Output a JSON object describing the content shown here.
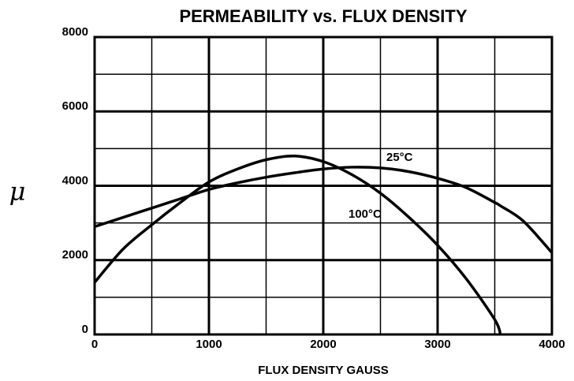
{
  "chart_data": {
    "type": "line",
    "title": "PERMEABILITY vs. FLUX DENSITY",
    "x_label": "FLUX  DENSITY  GAUSS",
    "y_label": "μ",
    "x": [
      0,
      250,
      500,
      750,
      1000,
      1250,
      1500,
      1750,
      2000,
      2250,
      2500,
      2750,
      3000,
      3250,
      3500,
      3550,
      3750,
      4000
    ],
    "series": [
      {
        "name": "25°C",
        "color": "#000000",
        "values": [
          2900,
          3150,
          3400,
          3650,
          3900,
          4080,
          4230,
          4350,
          4450,
          4500,
          4480,
          4380,
          4200,
          3950,
          3550,
          3460,
          3050,
          2200
        ]
      },
      {
        "name": "100°C",
        "color": "#000000",
        "values": [
          1400,
          2300,
          2950,
          3550,
          4100,
          4450,
          4700,
          4800,
          4650,
          4300,
          3800,
          3150,
          2400,
          1500,
          400,
          0,
          null,
          null
        ]
      }
    ],
    "xlim": [
      0,
      4000
    ],
    "ylim": [
      0,
      8000
    ],
    "xticks": [
      0,
      1000,
      2000,
      3000,
      4000
    ],
    "yticks": [
      0,
      2000,
      4000,
      6000,
      8000
    ],
    "x_minor_ticks": [
      500,
      1500,
      2500,
      3500
    ],
    "y_minor_ticks": [
      1000,
      3000,
      5000,
      7000
    ],
    "grid": true
  }
}
